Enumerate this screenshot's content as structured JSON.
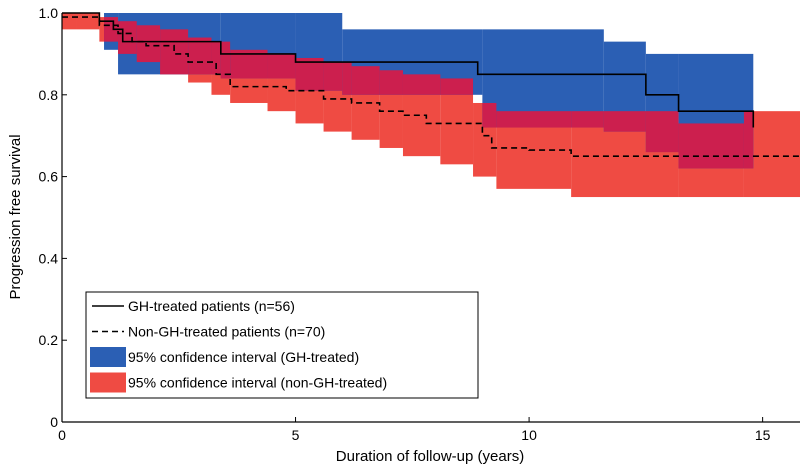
{
  "chart_data": {
    "type": "line",
    "xlabel": "Duration of follow-up (years)",
    "ylabel": "Progression free survival",
    "xlim": [
      0,
      15.8
    ],
    "ylim": [
      0,
      1.0
    ],
    "x_ticks": [
      0,
      5,
      10,
      15
    ],
    "y_ticks": [
      0,
      0.2,
      0.4,
      0.6,
      0.8,
      1.0
    ],
    "x_tick_labels": [
      "0",
      "5",
      "10",
      "15"
    ],
    "y_tick_labels": [
      "0",
      "0.2",
      "0.4",
      "0.6",
      "0.8",
      "1.0"
    ],
    "grid": false,
    "legend_position": "bottom-left",
    "colors": {
      "gh_ci": "#2b5fb4",
      "nongh_ci": "#ef4b43",
      "overlap": "#cc1f4e",
      "lines": "#000000"
    },
    "series": [
      {
        "name": "GH-treated patients (n=56)",
        "style": "solid",
        "steps": [
          [
            0.0,
            1.0
          ],
          [
            0.8,
            0.98
          ],
          [
            1.1,
            0.96
          ],
          [
            1.3,
            0.93
          ],
          [
            3.4,
            0.9
          ],
          [
            5.0,
            0.88
          ],
          [
            8.9,
            0.85
          ],
          [
            12.5,
            0.8
          ],
          [
            13.2,
            0.76
          ],
          [
            14.8,
            0.72
          ]
        ],
        "x_end": 14.8
      },
      {
        "name": "Non-GH-treated patients (n=70)",
        "style": "dashed",
        "steps": [
          [
            0.0,
            0.99
          ],
          [
            0.8,
            0.97
          ],
          [
            1.2,
            0.95
          ],
          [
            1.5,
            0.93
          ],
          [
            1.8,
            0.92
          ],
          [
            2.4,
            0.9
          ],
          [
            2.7,
            0.88
          ],
          [
            3.3,
            0.85
          ],
          [
            3.6,
            0.82
          ],
          [
            4.8,
            0.81
          ],
          [
            5.6,
            0.79
          ],
          [
            6.2,
            0.78
          ],
          [
            6.8,
            0.76
          ],
          [
            7.3,
            0.75
          ],
          [
            7.8,
            0.73
          ],
          [
            9.0,
            0.7
          ],
          [
            9.2,
            0.67
          ],
          [
            10.0,
            0.665
          ],
          [
            10.9,
            0.65
          ]
        ],
        "x_end": 15.8
      }
    ],
    "confidence_intervals": [
      {
        "name": "95% confidence interval (GH-treated)",
        "steps": [
          [
            0.0,
            1.0,
            1.0
          ],
          [
            0.9,
            1.0,
            0.91
          ],
          [
            1.2,
            1.0,
            0.85
          ],
          [
            3.4,
            1.0,
            0.84
          ],
          [
            5.0,
            1.0,
            0.81
          ],
          [
            6.0,
            0.96,
            0.8
          ],
          [
            9.0,
            0.96,
            0.72
          ],
          [
            11.6,
            0.93,
            0.71
          ],
          [
            12.5,
            0.9,
            0.66
          ],
          [
            13.2,
            0.9,
            0.62
          ],
          [
            14.8,
            0.9,
            0.62
          ]
        ],
        "x_end": 14.8
      },
      {
        "name": "95% confidence interval (non-GH-treated)",
        "steps": [
          [
            0.0,
            1.0,
            0.96
          ],
          [
            0.3,
            1.0,
            0.96
          ],
          [
            0.8,
            0.99,
            0.93
          ],
          [
            1.2,
            0.98,
            0.9
          ],
          [
            1.6,
            0.97,
            0.88
          ],
          [
            2.1,
            0.96,
            0.85
          ],
          [
            2.7,
            0.94,
            0.83
          ],
          [
            3.2,
            0.93,
            0.8
          ],
          [
            3.6,
            0.91,
            0.78
          ],
          [
            4.4,
            0.9,
            0.76
          ],
          [
            5.0,
            0.89,
            0.73
          ],
          [
            5.6,
            0.88,
            0.71
          ],
          [
            6.2,
            0.87,
            0.69
          ],
          [
            6.8,
            0.86,
            0.67
          ],
          [
            7.3,
            0.85,
            0.65
          ],
          [
            8.1,
            0.84,
            0.63
          ],
          [
            8.8,
            0.78,
            0.6
          ],
          [
            9.3,
            0.76,
            0.57
          ],
          [
            10.9,
            0.76,
            0.55
          ],
          [
            13.2,
            0.73,
            0.55
          ],
          [
            14.6,
            0.76,
            0.55
          ]
        ],
        "x_end": 15.8
      }
    ]
  }
}
